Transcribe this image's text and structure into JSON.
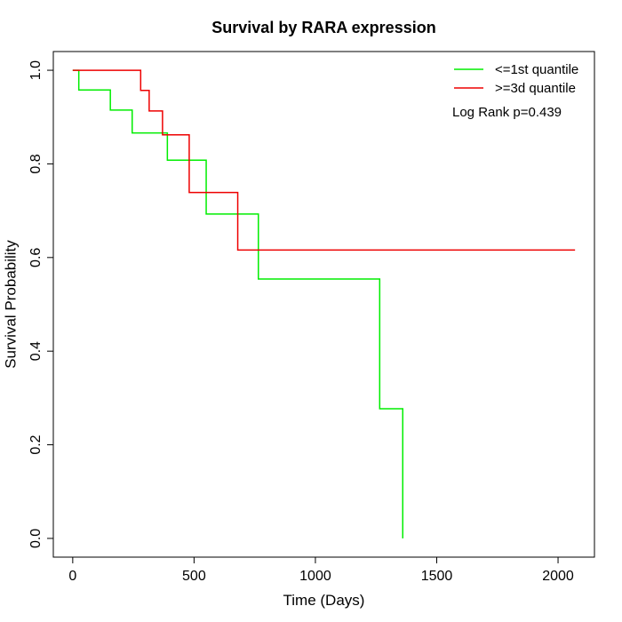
{
  "chart_data": {
    "type": "line",
    "step": true,
    "title": "Survival by RARA expression",
    "xlabel": "Time (Days)",
    "ylabel": "Survival Probability",
    "xlim": [
      -80,
      2150
    ],
    "ylim": [
      -0.04,
      1.04
    ],
    "xticks": [
      0,
      500,
      1000,
      1500,
      2000
    ],
    "yticks": [
      0.0,
      0.2,
      0.4,
      0.6,
      0.8,
      1.0
    ],
    "xtick_labels": [
      "0",
      "500",
      "1000",
      "1500",
      "2000"
    ],
    "ytick_labels": [
      "0.0",
      "0.2",
      "0.4",
      "0.6",
      "0.8",
      "1.0"
    ],
    "grid": false,
    "legend_position": "top-right",
    "annotation": "Log Rank p=0.439",
    "series": [
      {
        "name": "<=1st quantile",
        "color": "#00ee00",
        "x": [
          0,
          25,
          155,
          245,
          380,
          390,
          550,
          765,
          1265,
          1360
        ],
        "y": [
          1.0,
          0.958,
          0.915,
          0.866,
          0.866,
          0.808,
          0.693,
          0.554,
          0.277,
          0.0
        ]
      },
      {
        "name": ">=3d quantile",
        "color": "#ee0000",
        "x": [
          0,
          280,
          315,
          370,
          480,
          680,
          2070
        ],
        "y": [
          1.0,
          0.957,
          0.913,
          0.862,
          0.739,
          0.616,
          0.616
        ]
      }
    ]
  }
}
